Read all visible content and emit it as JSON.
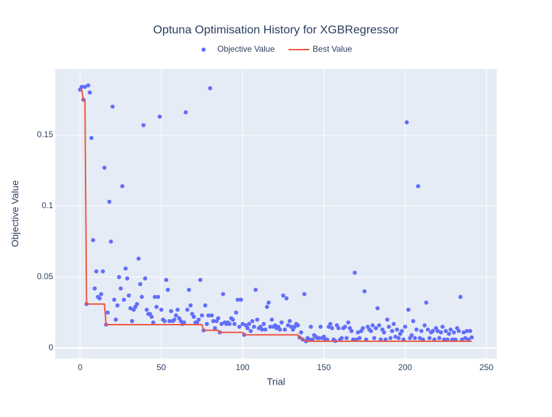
{
  "chart_data": {
    "type": "scatter",
    "title": "Optuna Optimisation History for XGBRegressor",
    "x_label": "Trial",
    "y_label": "Objective Value",
    "xlim": [
      -15.3,
      256.4
    ],
    "ylim": [
      -0.0073,
      0.1966
    ],
    "xticks": [
      0,
      50,
      100,
      150,
      200,
      250
    ],
    "yticks": [
      0,
      0.05,
      0.1,
      0.15
    ],
    "grid": true,
    "series": [
      {
        "name": "Objective Value",
        "color": "#636efa",
        "mode": "markers",
        "x": [
          0,
          1,
          2,
          3,
          4,
          5,
          6,
          7,
          8,
          9,
          10,
          11,
          12,
          13,
          14,
          15,
          16,
          17,
          18,
          19,
          20,
          21,
          22,
          23,
          24,
          25,
          26,
          27,
          28,
          29,
          30,
          31,
          32,
          33,
          34,
          35,
          36,
          37,
          38,
          39,
          40,
          41,
          42,
          43,
          44,
          45,
          46,
          47,
          48,
          49,
          50,
          51,
          52,
          53,
          54,
          55,
          56,
          57,
          58,
          59,
          60,
          61,
          62,
          63,
          64,
          65,
          66,
          67,
          68,
          69,
          70,
          71,
          72,
          73,
          74,
          75,
          76,
          77,
          78,
          79,
          80,
          81,
          82,
          83,
          84,
          85,
          86,
          87,
          88,
          89,
          90,
          91,
          92,
          93,
          94,
          95,
          96,
          97,
          98,
          99,
          100,
          101,
          102,
          103,
          104,
          105,
          106,
          107,
          108,
          109,
          110,
          111,
          112,
          113,
          114,
          115,
          116,
          117,
          118,
          119,
          120,
          121,
          122,
          123,
          124,
          125,
          126,
          127,
          128,
          129,
          130,
          131,
          132,
          133,
          134,
          135,
          136,
          137,
          138,
          139,
          140,
          141,
          142,
          143,
          144,
          145,
          146,
          147,
          148,
          149,
          150,
          151,
          152,
          153,
          154,
          155,
          156,
          157,
          158,
          159,
          160,
          161,
          162,
          163,
          164,
          165,
          166,
          167,
          168,
          169,
          170,
          171,
          172,
          173,
          174,
          175,
          176,
          177,
          178,
          179,
          180,
          181,
          182,
          183,
          184,
          185,
          186,
          187,
          188,
          189,
          190,
          191,
          192,
          193,
          194,
          195,
          196,
          197,
          198,
          199,
          200,
          201,
          202,
          203,
          204,
          205,
          206,
          207,
          208,
          209,
          210,
          211,
          212,
          213,
          214,
          215,
          216,
          217,
          218,
          219,
          220,
          221,
          222,
          223,
          224,
          225,
          226,
          227,
          228,
          229,
          230,
          231,
          232,
          233,
          234,
          235,
          236,
          237,
          238,
          239,
          240,
          241
        ],
        "values": [
          0.182,
          0.184,
          0.175,
          0.184,
          0.031,
          0.185,
          0.18,
          0.148,
          0.076,
          0.042,
          0.054,
          0.036,
          0.035,
          0.038,
          0.054,
          0.127,
          0.0165,
          0.025,
          0.103,
          0.075,
          0.17,
          0.034,
          0.02,
          0.03,
          0.05,
          0.042,
          0.114,
          0.034,
          0.056,
          0.049,
          0.037,
          0.028,
          0.019,
          0.027,
          0.029,
          0.031,
          0.063,
          0.045,
          0.036,
          0.157,
          0.049,
          0.027,
          0.024,
          0.024,
          0.022,
          0.018,
          0.036,
          0.029,
          0.036,
          0.163,
          0.027,
          0.02,
          0.019,
          0.048,
          0.041,
          0.019,
          0.026,
          0.019,
          0.02,
          0.023,
          0.027,
          0.021,
          0.019,
          0.017,
          0.018,
          0.166,
          0.027,
          0.041,
          0.03,
          0.024,
          0.022,
          0.018,
          0.018,
          0.02,
          0.048,
          0.023,
          0.0125,
          0.03,
          0.017,
          0.023,
          0.183,
          0.023,
          0.019,
          0.014,
          0.019,
          0.021,
          0.011,
          0.017,
          0.038,
          0.018,
          0.017,
          0.018,
          0.017,
          0.021,
          0.02,
          0.017,
          0.025,
          0.034,
          0.015,
          0.034,
          0.017,
          0.0093,
          0.016,
          0.014,
          0.017,
          0.012,
          0.019,
          0.015,
          0.041,
          0.02,
          0.014,
          0.015,
          0.013,
          0.017,
          0.013,
          0.029,
          0.032,
          0.015,
          0.02,
          0.015,
          0.016,
          0.014,
          0.015,
          0.013,
          0.018,
          0.037,
          0.013,
          0.035,
          0.016,
          0.019,
          0.015,
          0.013,
          0.015,
          0.017,
          0.016,
          0.0075,
          0.011,
          0.006,
          0.038,
          0.0048,
          0.007,
          0.006,
          0.015,
          0.006,
          0.009,
          0.008,
          0.007,
          0.007,
          0.015,
          0.007,
          0.008,
          0.006,
          0.006,
          0.015,
          0.017,
          0.014,
          0.006,
          0.005,
          0.016,
          0.014,
          0.006,
          0.007,
          0.014,
          0.015,
          0.007,
          0.018,
          0.014,
          0.012,
          0.006,
          0.053,
          0.006,
          0.011,
          0.007,
          0.012,
          0.014,
          0.04,
          0.006,
          0.015,
          0.013,
          0.012,
          0.016,
          0.007,
          0.014,
          0.028,
          0.016,
          0.006,
          0.013,
          0.011,
          0.006,
          0.02,
          0.015,
          0.007,
          0.012,
          0.017,
          0.008,
          0.013,
          0.007,
          0.01,
          0.012,
          0.006,
          0.015,
          0.159,
          0.027,
          0.007,
          0.009,
          0.019,
          0.007,
          0.013,
          0.114,
          0.007,
          0.012,
          0.006,
          0.016,
          0.032,
          0.013,
          0.007,
          0.011,
          0.012,
          0.006,
          0.014,
          0.012,
          0.007,
          0.011,
          0.015,
          0.006,
          0.012,
          0.006,
          0.01,
          0.013,
          0.006,
          0.011,
          0.006,
          0.014,
          0.012,
          0.036,
          0.006,
          0.011,
          0.007,
          0.012,
          0.006,
          0.012,
          0.0075
        ]
      },
      {
        "name": "Best Value",
        "color": "#ef553b",
        "mode": "lines",
        "x": [
          0,
          1,
          2,
          3,
          4,
          15,
          16,
          75,
          76,
          85,
          86,
          100,
          101,
          134,
          135,
          136,
          137,
          138,
          139,
          241
        ],
        "values": [
          0.182,
          0.182,
          0.175,
          0.175,
          0.031,
          0.031,
          0.0165,
          0.0165,
          0.0125,
          0.0125,
          0.011,
          0.011,
          0.0093,
          0.0093,
          0.0075,
          0.0075,
          0.006,
          0.006,
          0.0048,
          0.0048
        ]
      }
    ]
  }
}
